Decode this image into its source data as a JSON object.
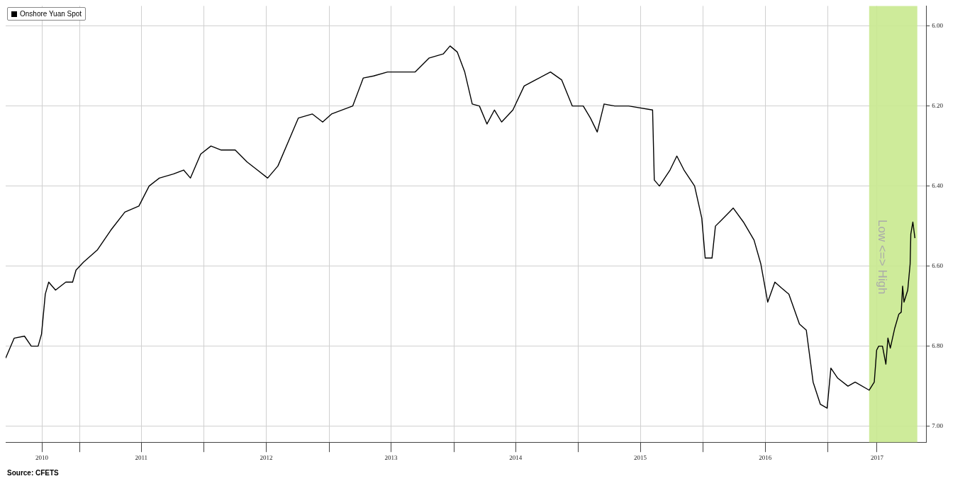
{
  "chart_data": {
    "type": "line",
    "x": [
      "2010-05-30",
      "2010-06-24",
      "2010-07-24",
      "2010-08-13",
      "2010-09-02",
      "2010-09-12",
      "2010-09-23",
      "2010-10-03",
      "2010-10-23",
      "2010-11-22",
      "2010-12-12",
      "2010-12-22",
      "2011-01-13",
      "2011-02-22",
      "2011-04-03",
      "2011-05-14",
      "2011-06-24",
      "2011-07-24",
      "2011-08-23",
      "2011-10-03",
      "2011-11-02",
      "2011-11-22",
      "2011-12-22",
      "2012-01-21",
      "2012-02-20",
      "2012-04-01",
      "2012-05-06",
      "2012-06-05",
      "2012-07-05",
      "2012-08-04",
      "2012-09-03",
      "2012-10-03",
      "2012-11-13",
      "2012-12-13",
      "2013-01-08",
      "2013-03-11",
      "2013-04-11",
      "2013-05-11",
      "2013-06-21",
      "2013-09-10",
      "2013-10-21",
      "2013-12-01",
      "2013-12-21",
      "2014-01-11",
      "2014-02-02",
      "2014-02-24",
      "2014-03-17",
      "2014-04-08",
      "2014-04-30",
      "2014-05-21",
      "2014-06-23",
      "2014-07-26",
      "2014-08-28",
      "2014-10-11",
      "2014-11-13",
      "2014-12-14",
      "2015-01-15",
      "2015-02-05",
      "2015-02-25",
      "2015-03-17",
      "2015-04-17",
      "2015-05-28",
      "2015-08-06",
      "2015-08-11",
      "2015-08-26",
      "2015-09-26",
      "2015-10-16",
      "2015-11-06",
      "2015-12-07",
      "2015-12-28",
      "2016-01-07",
      "2016-01-27",
      "2016-02-06",
      "2016-03-18",
      "2016-03-29",
      "2016-04-28",
      "2016-05-29",
      "2016-06-18",
      "2016-07-08",
      "2016-07-29",
      "2016-08-18",
      "2016-09-08",
      "2016-10-09",
      "2016-10-29",
      "2016-11-18",
      "2016-12-09",
      "2016-12-29",
      "2017-01-09",
      "2017-01-29",
      "2017-02-28",
      "2017-03-21",
      "2017-05-01",
      "2017-05-16",
      "2017-05-23",
      "2017-05-29",
      "2017-06-09",
      "2017-06-19",
      "2017-06-25",
      "2017-07-02",
      "2017-07-15",
      "2017-07-27",
      "2017-08-03",
      "2017-08-07",
      "2017-08-11",
      "2017-08-22",
      "2017-08-29",
      "2017-08-31",
      "2017-09-06",
      "2017-09-12"
    ],
    "series": [
      {
        "name": "Onshore Yuan Spot",
        "color": "#000000",
        "values": [
          6.83,
          6.78,
          6.775,
          6.8,
          6.8,
          6.77,
          6.67,
          6.64,
          6.66,
          6.64,
          6.64,
          6.61,
          6.59,
          6.56,
          6.51,
          6.465,
          6.45,
          6.4,
          6.38,
          6.37,
          6.36,
          6.38,
          6.32,
          6.3,
          6.31,
          6.31,
          6.34,
          6.36,
          6.38,
          6.35,
          6.29,
          6.23,
          6.22,
          6.24,
          6.22,
          6.2,
          6.13,
          6.125,
          6.115,
          6.115,
          6.08,
          6.07,
          6.05,
          6.065,
          6.115,
          6.195,
          6.2,
          6.245,
          6.21,
          6.24,
          6.21,
          6.15,
          6.135,
          6.115,
          6.135,
          6.2,
          6.2,
          6.23,
          6.265,
          6.195,
          6.2,
          6.2,
          6.21,
          6.385,
          6.4,
          6.36,
          6.325,
          6.36,
          6.4,
          6.48,
          6.58,
          6.58,
          6.5,
          6.465,
          6.455,
          6.49,
          6.535,
          6.595,
          6.69,
          6.64,
          6.655,
          6.67,
          6.745,
          6.76,
          6.89,
          6.945,
          6.955,
          6.855,
          6.88,
          6.9,
          6.89,
          6.91,
          6.89,
          6.81,
          6.8,
          6.8,
          6.845,
          6.78,
          6.805,
          6.755,
          6.72,
          6.715,
          6.65,
          6.69,
          6.66,
          6.595,
          6.52,
          6.49,
          6.53
        ]
      }
    ],
    "xlim": [
      "2010-05-30",
      "2017-10-15"
    ],
    "xticks": [
      {
        "value": "2010-09-13",
        "label": "2010"
      },
      {
        "value": "2011-01-01",
        "label": null
      },
      {
        "value": "2011-07-01",
        "label": "2011"
      },
      {
        "value": "2012-01-01",
        "label": null
      },
      {
        "value": "2012-07-01",
        "label": "2012"
      },
      {
        "value": "2013-01-01",
        "label": null
      },
      {
        "value": "2013-07-01",
        "label": "2013"
      },
      {
        "value": "2014-01-01",
        "label": null
      },
      {
        "value": "2014-07-01",
        "label": "2014"
      },
      {
        "value": "2015-01-01",
        "label": null
      },
      {
        "value": "2015-07-01",
        "label": "2015"
      },
      {
        "value": "2016-01-01",
        "label": null
      },
      {
        "value": "2016-07-01",
        "label": "2016"
      },
      {
        "value": "2017-01-01",
        "label": null
      },
      {
        "value": "2017-05-24",
        "label": "2017"
      }
    ],
    "ylim": [
      7.04,
      5.95
    ],
    "yticks": [
      {
        "value": 6,
        "label": "6.00"
      },
      {
        "value": 6.2,
        "label": "6.20"
      },
      {
        "value": 6.4,
        "label": "6.40"
      },
      {
        "value": 6.6,
        "label": "6.60"
      },
      {
        "value": 6.8,
        "label": "6.80"
      },
      {
        "value": 7,
        "label": "7.00"
      }
    ],
    "bands": [
      {
        "axis": "x",
        "from": "2017-05-01",
        "to": "2017-09-19",
        "color": "#c9e98f"
      }
    ],
    "annotations": [
      "Low <=> High",
      "Source: CFETS"
    ],
    "grid": true,
    "legend": "top left",
    "marker": "none",
    "line_style": "solid"
  }
}
